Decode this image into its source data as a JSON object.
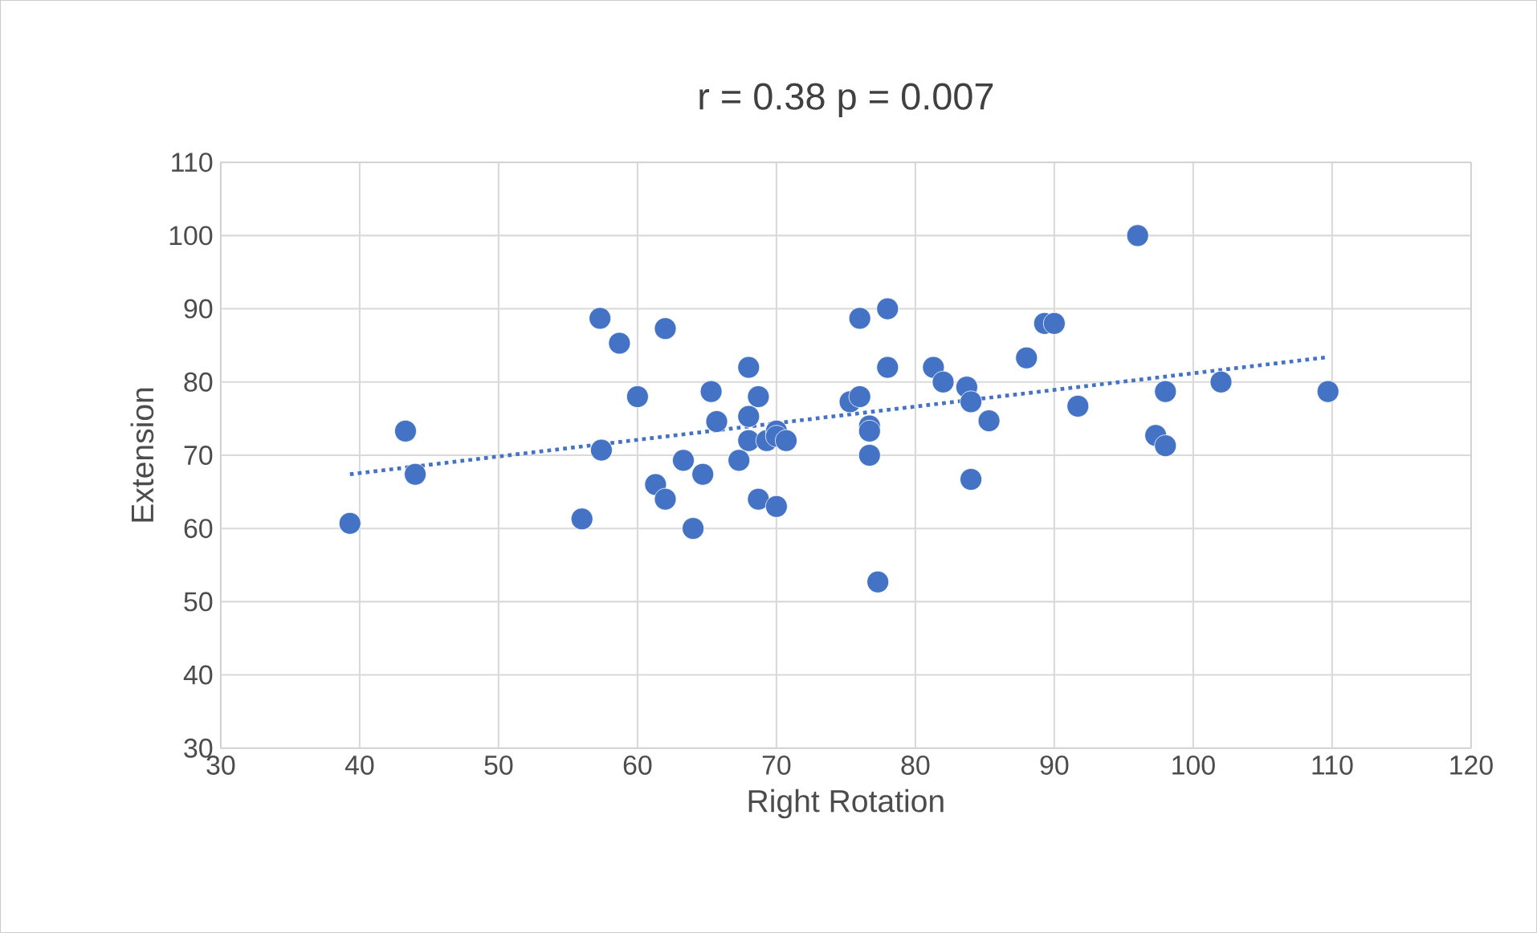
{
  "chart_data": {
    "type": "scatter",
    "title": "r = 0.38 p = 0.007",
    "xlabel": "Right Rotation",
    "ylabel": "Extension",
    "xlim": [
      30,
      120
    ],
    "xticks": [
      30,
      40,
      50,
      60,
      70,
      80,
      90,
      100,
      110,
      120
    ],
    "ylim": [
      30,
      110
    ],
    "yticks": [
      30,
      40,
      50,
      60,
      70,
      80,
      90,
      100,
      110
    ],
    "grid": true,
    "marker": "circle",
    "series": [
      {
        "color": "#4472c4",
        "x": [
          39.3,
          43.3,
          44,
          56,
          57.3,
          57.4,
          58.7,
          60,
          61.3,
          62,
          62,
          63.3,
          64,
          64.7,
          65.3,
          65.7,
          67.3,
          68,
          68,
          68,
          68.7,
          68.7,
          69.3,
          70,
          70,
          70,
          70.7,
          75.3,
          76,
          76,
          76.7,
          76.7,
          76.7,
          77.3,
          78,
          78,
          81.3,
          82,
          83.7,
          84,
          84,
          85.3,
          88,
          89.3,
          90,
          91.7,
          96,
          97.3,
          98,
          98,
          102,
          109.7
        ],
        "values": [
          60.7,
          73.3,
          67.4,
          61.3,
          88.7,
          70.7,
          85.3,
          78,
          66,
          87.3,
          64,
          69.3,
          60,
          67.4,
          78.7,
          74.6,
          69.3,
          82,
          75.3,
          72,
          78,
          64,
          72,
          73.3,
          72.6,
          63,
          72,
          77.3,
          78,
          88.7,
          74,
          73.3,
          70,
          52.7,
          90,
          82,
          82,
          80,
          79.3,
          77.3,
          66.7,
          74.7,
          83.3,
          88,
          88,
          76.7,
          100,
          72.7,
          78.7,
          71.3,
          80,
          78.7
        ]
      },
      {
        "color": "#4472c4",
        "type": "line",
        "line_style": "dotted",
        "marker": "none",
        "x": [
          39.3,
          109.7
        ],
        "values": [
          67.4,
          83.4
        ]
      }
    ]
  }
}
